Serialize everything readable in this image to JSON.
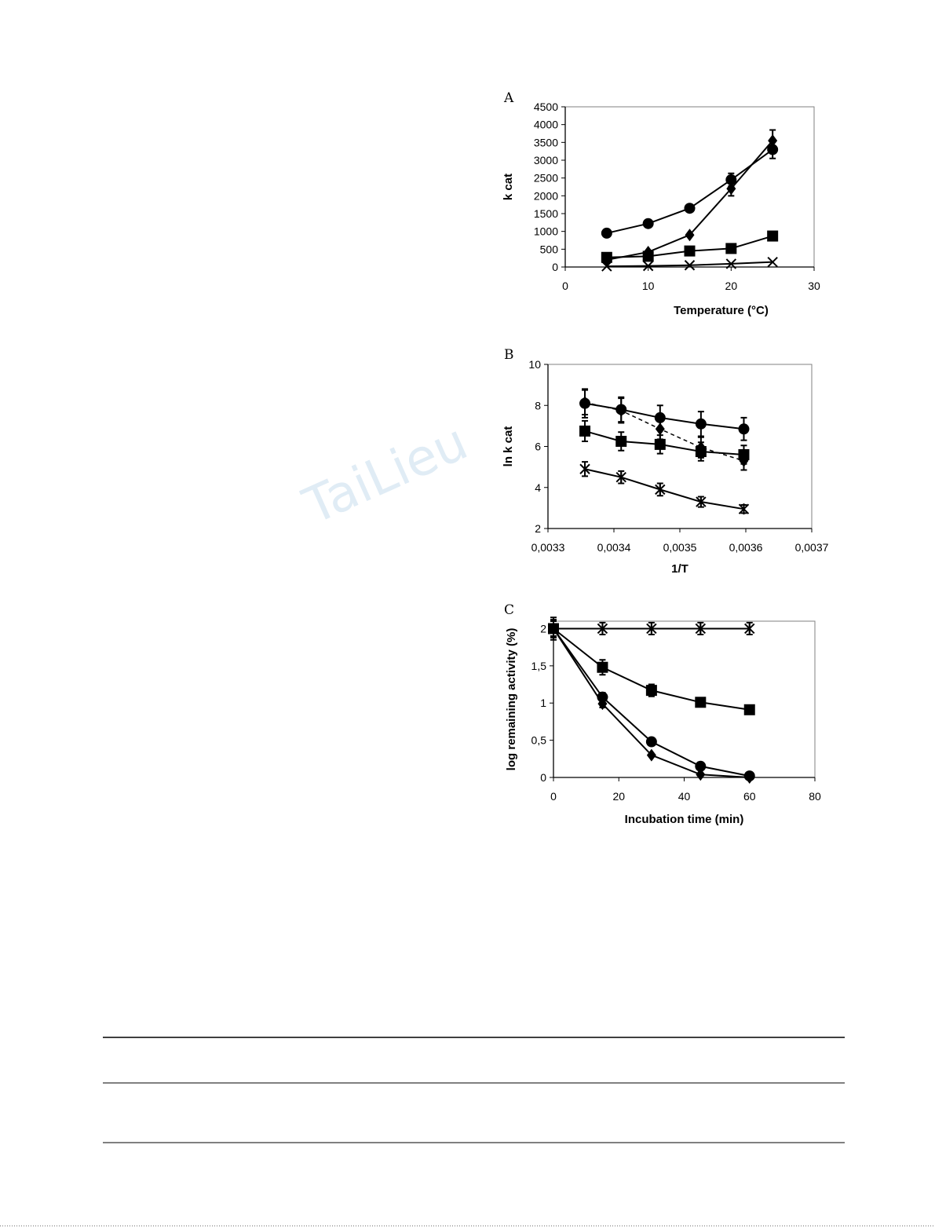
{
  "watermark": "TaiLieu",
  "chart_data": [
    {
      "id": "A",
      "type": "line",
      "panel_label": "A",
      "xlabel": "Temperature (°C)",
      "ylabel": "k cat",
      "xlim": [
        0,
        30
      ],
      "ylim": [
        0,
        4500
      ],
      "xticks": [
        0,
        10,
        20,
        30
      ],
      "xtick_labels": [
        "0",
        "10",
        "20",
        "30"
      ],
      "yticks": [
        0,
        500,
        1000,
        1500,
        2000,
        2500,
        3000,
        3500,
        4000,
        4500
      ],
      "ytick_labels": [
        "0",
        "500",
        "1000",
        "1500",
        "2000",
        "2500",
        "3000",
        "3500",
        "4000",
        "4500"
      ],
      "grid": false,
      "series": [
        {
          "marker": "circle",
          "x": [
            5,
            10,
            15,
            20,
            25
          ],
          "y": [
            950,
            1220,
            1650,
            2450,
            3300
          ],
          "err": [
            0,
            0,
            0,
            180,
            250
          ]
        },
        {
          "marker": "diamond",
          "x": [
            5,
            10,
            15,
            20,
            25
          ],
          "y": [
            200,
            420,
            900,
            2200,
            3550
          ],
          "err": [
            0,
            0,
            0,
            200,
            300
          ]
        },
        {
          "marker": "square",
          "x": [
            5,
            10,
            15,
            20,
            25
          ],
          "y": [
            270,
            300,
            450,
            520,
            870
          ],
          "err": [
            0,
            0,
            0,
            0,
            0
          ]
        },
        {
          "marker": "cross",
          "x": [
            5,
            10,
            15,
            20,
            25
          ],
          "y": [
            20,
            30,
            50,
            90,
            140
          ],
          "err": [
            0,
            0,
            0,
            0,
            0
          ]
        }
      ]
    },
    {
      "id": "B",
      "type": "line",
      "panel_label": "B",
      "xlabel": "1/T",
      "ylabel": "ln k cat",
      "xlim": [
        0.0033,
        0.0037
      ],
      "ylim": [
        2,
        10
      ],
      "xticks": [
        0.0033,
        0.0034,
        0.0035,
        0.0036,
        0.0037
      ],
      "xtick_labels": [
        "0,0033",
        "0,0034",
        "0,0035",
        "0,0036",
        "0,0037"
      ],
      "yticks": [
        2,
        4,
        6,
        8,
        10
      ],
      "ytick_labels": [
        "2",
        "4",
        "6",
        "8",
        "10"
      ],
      "grid": false,
      "series": [
        {
          "marker": "circle",
          "dashed": false,
          "x": [
            0.003356,
            0.003411,
            0.00347,
            0.003532,
            0.003597
          ],
          "y": [
            8.1,
            7.8,
            7.4,
            7.1,
            6.85
          ],
          "err": [
            0.7,
            0.6,
            0.6,
            0.6,
            0.55
          ]
        },
        {
          "marker": "diamond",
          "dashed": true,
          "x": [
            0.003356,
            0.003411,
            0.00347,
            0.003532,
            0.003597
          ],
          "y": [
            8.15,
            7.75,
            6.85,
            5.95,
            5.3
          ],
          "err": [
            0.6,
            0.6,
            0.5,
            0.5,
            0.45
          ]
        },
        {
          "marker": "square",
          "dashed": false,
          "x": [
            0.003356,
            0.003411,
            0.00347,
            0.003532,
            0.003597
          ],
          "y": [
            6.75,
            6.25,
            6.1,
            5.75,
            5.6
          ],
          "err": [
            0.5,
            0.45,
            0.45,
            0.45,
            0.45
          ]
        },
        {
          "marker": "star",
          "dashed": false,
          "x": [
            0.003356,
            0.003411,
            0.00347,
            0.003532,
            0.003597
          ],
          "y": [
            4.9,
            4.5,
            3.9,
            3.3,
            2.95
          ],
          "err": [
            0.35,
            0.3,
            0.3,
            0.25,
            0.2
          ]
        }
      ]
    },
    {
      "id": "C",
      "type": "line",
      "panel_label": "C",
      "xlabel": "Incubation time (min)",
      "ylabel": "log remaining activity (%)",
      "xlim": [
        0,
        80
      ],
      "ylim": [
        0,
        2.1
      ],
      "xticks": [
        0,
        20,
        40,
        60,
        80
      ],
      "xtick_labels": [
        "0",
        "20",
        "40",
        "60",
        "80"
      ],
      "yticks": [
        0,
        0.5,
        1,
        1.5,
        2
      ],
      "ytick_labels": [
        "0",
        "0,5",
        "1",
        "1,5",
        "2"
      ],
      "grid": false,
      "series": [
        {
          "marker": "star",
          "x": [
            0,
            15,
            30,
            45,
            60
          ],
          "y": [
            2,
            2,
            2,
            2,
            2
          ],
          "err": [
            0.15,
            0.08,
            0.08,
            0.08,
            0.08
          ]
        },
        {
          "marker": "square",
          "x": [
            0,
            15,
            30,
            45,
            60
          ],
          "y": [
            2,
            1.48,
            1.17,
            1.01,
            0.91
          ],
          "err": [
            0.12,
            0.1,
            0.08,
            0.06,
            0.05
          ]
        },
        {
          "marker": "circle",
          "x": [
            0,
            15,
            30,
            45,
            60
          ],
          "y": [
            2,
            1.08,
            0.48,
            0.15,
            0.02
          ],
          "err": [
            0.1,
            0.06,
            0,
            0,
            0
          ]
        },
        {
          "marker": "diamond",
          "x": [
            0,
            15,
            30,
            45,
            60
          ],
          "y": [
            2,
            0.99,
            0.3,
            0.04,
            0.0
          ],
          "err": [
            0.1,
            0.05,
            0,
            0,
            0
          ]
        }
      ]
    }
  ]
}
